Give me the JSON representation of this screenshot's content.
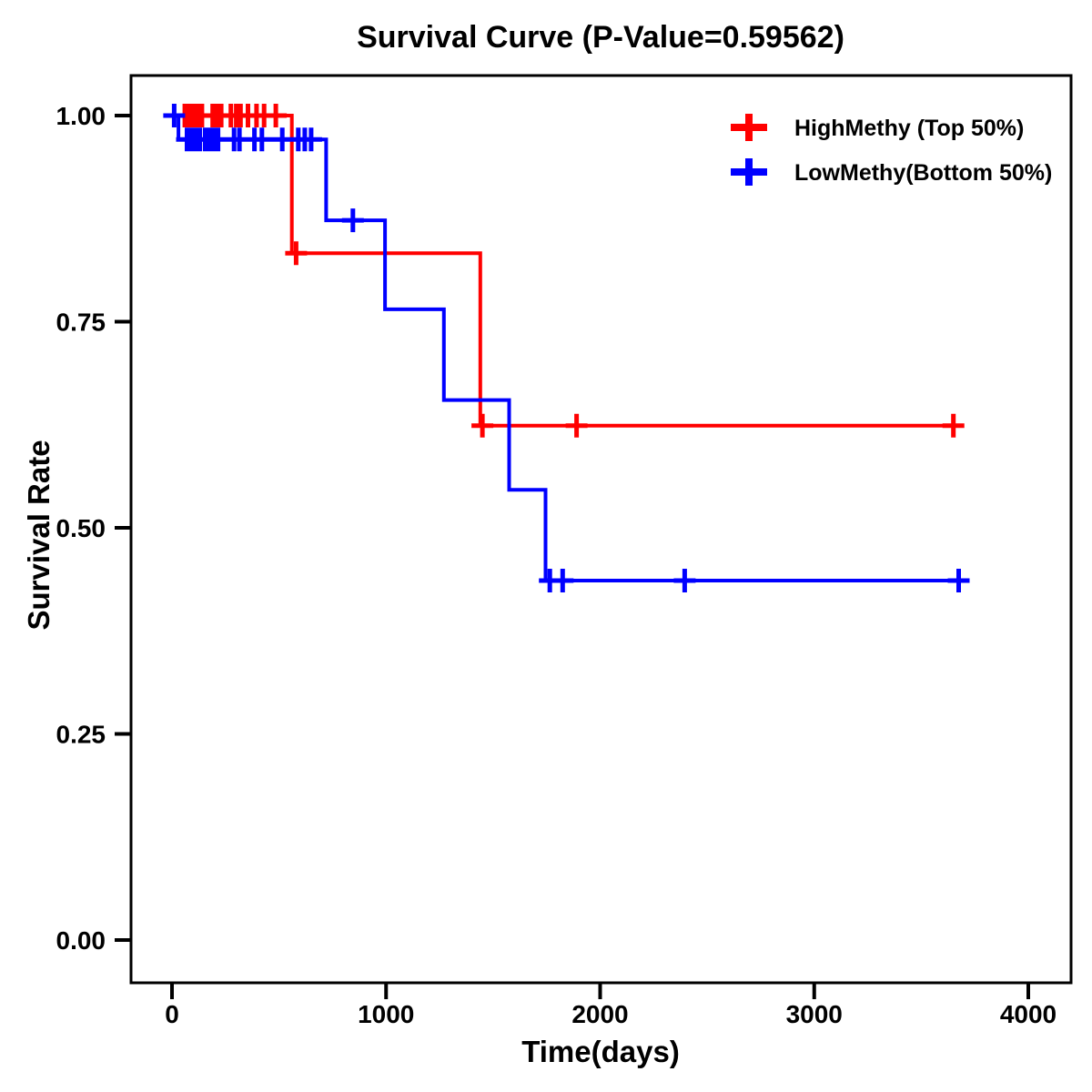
{
  "title": "Survival Curve (P-Value=0.59562)",
  "p_value": "0.59562",
  "chart_data": {
    "type": "line",
    "subtype": "kaplan-meier-step-survival",
    "title": "Survival Curve (P-Value=0.59562)",
    "xlabel": "Time(days)",
    "ylabel": "Survival Rate",
    "xlim": [
      0,
      4000
    ],
    "ylim": [
      0.0,
      1.0
    ],
    "x_ticks": [
      0,
      1000,
      2000,
      3000,
      4000
    ],
    "x_tick_labels": [
      "0",
      "1000",
      "2000",
      "3000",
      "4000"
    ],
    "y_ticks": [
      0.0,
      0.25,
      0.5,
      0.75,
      1.0
    ],
    "y_tick_labels": [
      "0.00",
      "0.25",
      "0.50",
      "0.75",
      "1.00"
    ],
    "grid": false,
    "legend_position": "top-right-inside",
    "axis_color": "#000000",
    "background_color": "#ffffff",
    "series": [
      {
        "name": "HighMethy (Top 50%)",
        "color": "#FF0000",
        "steps": [
          [
            0,
            1.0
          ],
          [
            560,
            1.0
          ],
          [
            560,
            0.833
          ],
          [
            1440,
            0.833
          ],
          [
            1440,
            0.624
          ],
          [
            3650,
            0.624
          ]
        ],
        "censor_marks": [
          [
            60,
            1.0
          ],
          [
            80,
            1.0
          ],
          [
            100,
            1.0
          ],
          [
            120,
            1.0
          ],
          [
            140,
            1.0
          ],
          [
            190,
            1.0
          ],
          [
            210,
            1.0
          ],
          [
            230,
            1.0
          ],
          [
            275,
            1.0
          ],
          [
            300,
            1.0
          ],
          [
            320,
            1.0
          ],
          [
            355,
            1.0
          ],
          [
            395,
            1.0
          ],
          [
            430,
            1.0
          ],
          [
            485,
            1.0
          ],
          [
            580,
            0.833
          ],
          [
            1450,
            0.624
          ],
          [
            1890,
            0.624
          ],
          [
            3650,
            0.624
          ]
        ]
      },
      {
        "name": "LowMethy(Bottom 50%)",
        "color": "#0000FF",
        "steps": [
          [
            0,
            1.0
          ],
          [
            30,
            1.0
          ],
          [
            30,
            0.971
          ],
          [
            720,
            0.971
          ],
          [
            720,
            0.873
          ],
          [
            995,
            0.873
          ],
          [
            995,
            0.765
          ],
          [
            1270,
            0.765
          ],
          [
            1270,
            0.655
          ],
          [
            1575,
            0.655
          ],
          [
            1575,
            0.546
          ],
          [
            1745,
            0.546
          ],
          [
            1745,
            0.436
          ],
          [
            3675,
            0.436
          ]
        ],
        "censor_marks": [
          [
            10,
            1.0
          ],
          [
            70,
            0.971
          ],
          [
            90,
            0.971
          ],
          [
            110,
            0.971
          ],
          [
            130,
            0.971
          ],
          [
            155,
            0.971
          ],
          [
            175,
            0.971
          ],
          [
            195,
            0.971
          ],
          [
            215,
            0.971
          ],
          [
            290,
            0.971
          ],
          [
            315,
            0.971
          ],
          [
            385,
            0.971
          ],
          [
            420,
            0.971
          ],
          [
            515,
            0.971
          ],
          [
            590,
            0.971
          ],
          [
            620,
            0.971
          ],
          [
            650,
            0.971
          ],
          [
            845,
            0.873
          ],
          [
            1765,
            0.436
          ],
          [
            1825,
            0.436
          ],
          [
            2395,
            0.436
          ],
          [
            3675,
            0.436
          ]
        ]
      }
    ]
  }
}
